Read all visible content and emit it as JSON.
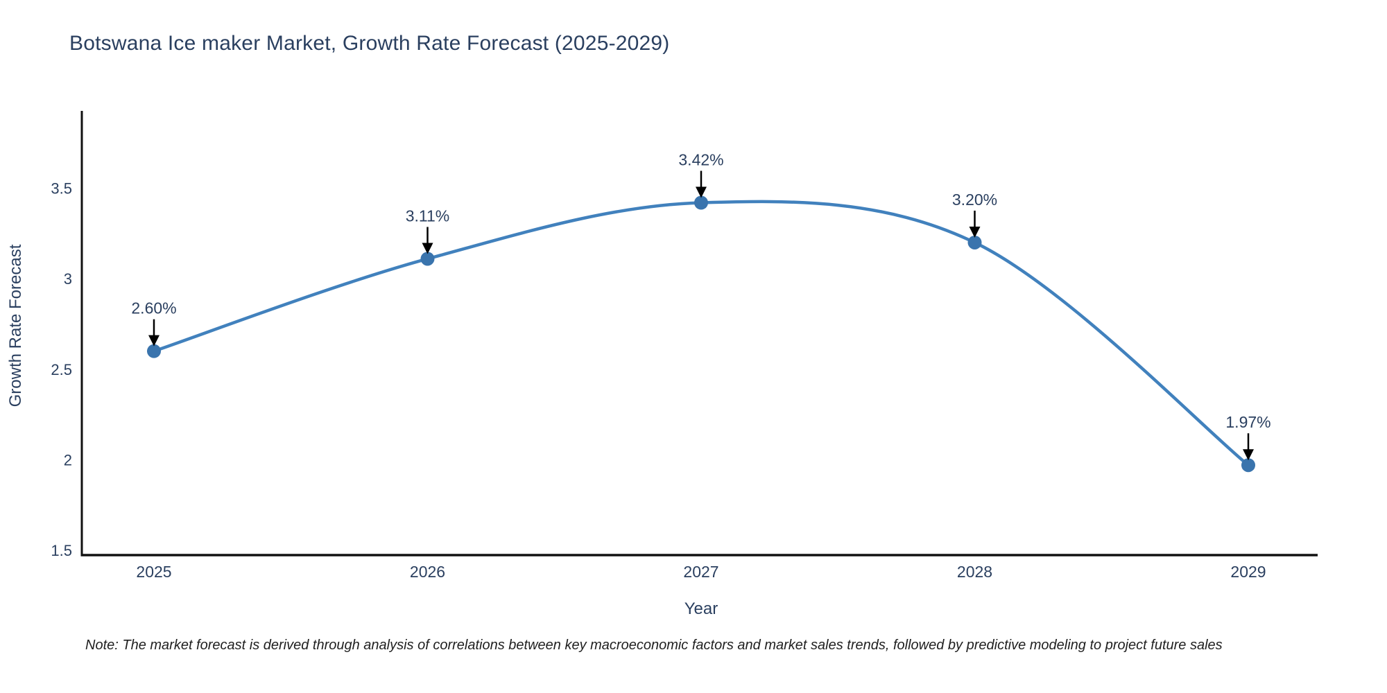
{
  "chart_data": {
    "type": "line",
    "title": "Botswana Ice maker Market, Growth Rate Forecast (2025-2029)",
    "xlabel": "Year",
    "ylabel": "Growth Rate Forecast",
    "x": [
      "2025",
      "2026",
      "2027",
      "2028",
      "2029"
    ],
    "values": [
      2.6,
      3.11,
      3.42,
      3.2,
      1.97
    ],
    "point_labels": [
      "2.60%",
      "3.11%",
      "3.42%",
      "3.20%",
      "1.97%"
    ],
    "yticks": [
      1.5,
      2,
      2.5,
      3,
      3.5
    ],
    "ylim": [
      1.47,
      3.96
    ],
    "line_shape": "spline",
    "grid": false,
    "legend": "none",
    "annotation_style": "black-down-arrows",
    "colors": {
      "line": "#4181bd",
      "marker": "#3a74ad",
      "arrow": "#000000",
      "text": "#2a3f5f",
      "axis": "#111111"
    },
    "note": "Note: The market forecast is derived through analysis of correlations between key macroeconomic factors and market sales trends, followed by predictive modeling to project future sales"
  }
}
